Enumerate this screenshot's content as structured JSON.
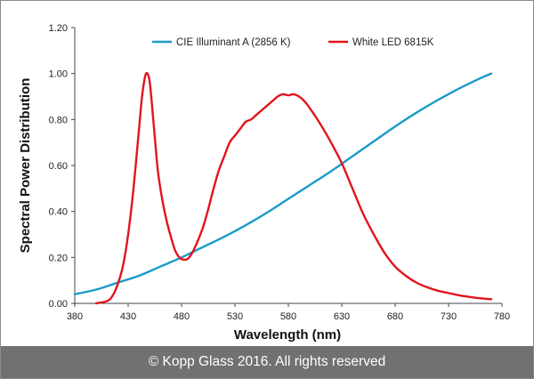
{
  "chart_data": {
    "type": "line",
    "xlabel": "Wavelength (nm)",
    "ylabel": "Spectral Power Distribution",
    "xlim": [
      380,
      780
    ],
    "ylim": [
      0,
      1.2
    ],
    "x_ticks": [
      "380",
      "430",
      "480",
      "530",
      "580",
      "630",
      "680",
      "730",
      "780"
    ],
    "y_ticks": [
      "0.00",
      "0.20",
      "0.40",
      "0.60",
      "0.80",
      "1.00",
      "1.20"
    ],
    "grid": false,
    "legend_position": "top",
    "series": [
      {
        "name": "CIE Illuminant A (2856 K)",
        "color": "#1a9bc9",
        "x": [
          380,
          400,
          420,
          440,
          460,
          480,
          500,
          520,
          540,
          560,
          580,
          600,
          620,
          640,
          660,
          680,
          700,
          720,
          740,
          760,
          770
        ],
        "y": [
          0.04,
          0.06,
          0.09,
          0.12,
          0.16,
          0.2,
          0.245,
          0.29,
          0.34,
          0.395,
          0.455,
          0.515,
          0.575,
          0.64,
          0.705,
          0.77,
          0.83,
          0.885,
          0.935,
          0.98,
          1.0
        ]
      },
      {
        "name": "White LED 6815K",
        "color": "#e2141d",
        "x": [
          400,
          410,
          415,
          420,
          425,
          430,
          435,
          440,
          443,
          446,
          448,
          450,
          452,
          455,
          458,
          462,
          466,
          470,
          474,
          478,
          482,
          486,
          490,
          495,
          500,
          505,
          510,
          515,
          520,
          525,
          530,
          535,
          540,
          545,
          550,
          555,
          560,
          565,
          570,
          575,
          580,
          585,
          590,
          595,
          600,
          610,
          620,
          630,
          640,
          650,
          660,
          670,
          680,
          690,
          700,
          710,
          720,
          730,
          740,
          750,
          760,
          770
        ],
        "y": [
          0.0,
          0.01,
          0.03,
          0.08,
          0.16,
          0.3,
          0.5,
          0.75,
          0.9,
          0.99,
          1.0,
          0.97,
          0.88,
          0.72,
          0.57,
          0.45,
          0.36,
          0.29,
          0.23,
          0.2,
          0.19,
          0.195,
          0.22,
          0.27,
          0.33,
          0.41,
          0.5,
          0.58,
          0.64,
          0.7,
          0.73,
          0.76,
          0.79,
          0.8,
          0.82,
          0.84,
          0.86,
          0.88,
          0.9,
          0.91,
          0.905,
          0.91,
          0.9,
          0.88,
          0.85,
          0.78,
          0.7,
          0.61,
          0.5,
          0.39,
          0.3,
          0.22,
          0.16,
          0.12,
          0.09,
          0.07,
          0.055,
          0.045,
          0.035,
          0.028,
          0.022,
          0.018
        ]
      }
    ]
  },
  "footer": {
    "copyright": "© Kopp Glass 2016. All rights reserved"
  }
}
